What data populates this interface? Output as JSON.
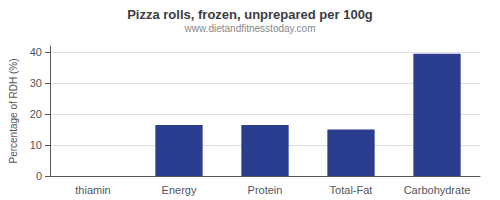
{
  "chart_data": {
    "type": "bar",
    "title": "Pizza rolls, frozen, unprepared per 100g",
    "subtitle": "www.dietandfitnesstoday.com",
    "ylabel": "Percentage of RDH (%)",
    "categories": [
      "thiamin",
      "Energy",
      "Protein",
      "Total-Fat",
      "Carbohydrate"
    ],
    "values": [
      0,
      16.5,
      16.5,
      15,
      39.5
    ],
    "color": "#2b3d8f",
    "ylim": [
      0,
      42
    ],
    "yticks": [
      0,
      10,
      20,
      30,
      40
    ],
    "grid": true
  }
}
